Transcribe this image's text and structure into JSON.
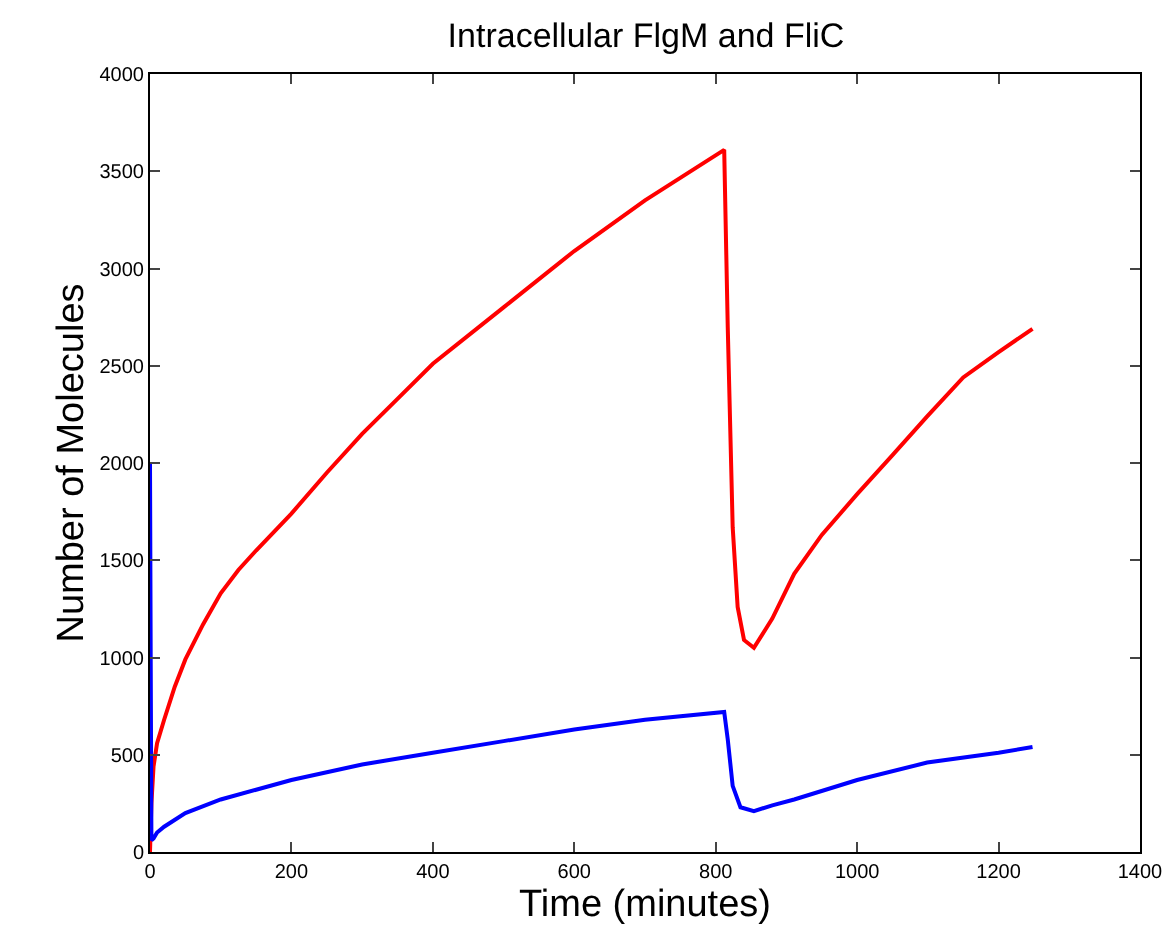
{
  "chart_data": {
    "type": "line",
    "title": "Intracellular FlgM and FliC",
    "xlabel": "Time (minutes)",
    "ylabel": "Number of Molecules",
    "xlim": [
      0,
      1400
    ],
    "ylim": [
      0,
      4000
    ],
    "xticks": [
      0,
      200,
      400,
      600,
      800,
      1000,
      1200,
      1400
    ],
    "yticks": [
      0,
      500,
      1000,
      1500,
      2000,
      2500,
      3000,
      3500,
      4000
    ],
    "grid": false,
    "line_style": "solid",
    "marker": "none",
    "series": [
      {
        "color": "#ff0000",
        "x": [
          0,
          2,
          5,
          10,
          20,
          35,
          50,
          75,
          100,
          125,
          150,
          200,
          250,
          300,
          350,
          400,
          500,
          600,
          700,
          812,
          817,
          824,
          831,
          840,
          854,
          880,
          911,
          950,
          1000,
          1050,
          1099,
          1150,
          1200,
          1248
        ],
        "values": [
          0,
          250,
          440,
          560,
          680,
          850,
          990,
          1170,
          1330,
          1450,
          1550,
          1740,
          1950,
          2150,
          2330,
          2510,
          2800,
          3090,
          3350,
          3610,
          2700,
          1670,
          1260,
          1090,
          1050,
          1200,
          1430,
          1630,
          1840,
          2040,
          2240,
          2440,
          2570,
          2690
        ]
      },
      {
        "color": "#0000ff",
        "x": [
          0,
          1,
          2,
          5,
          10,
          20,
          50,
          100,
          150,
          200,
          300,
          400,
          500,
          600,
          700,
          812,
          817,
          824,
          835,
          854,
          880,
          911,
          1000,
          1099,
          1200,
          1248
        ],
        "values": [
          2000,
          1000,
          60,
          70,
          100,
          130,
          200,
          270,
          320,
          370,
          450,
          510,
          570,
          630,
          680,
          720,
          580,
          340,
          230,
          210,
          240,
          270,
          370,
          460,
          510,
          540
        ]
      }
    ]
  }
}
